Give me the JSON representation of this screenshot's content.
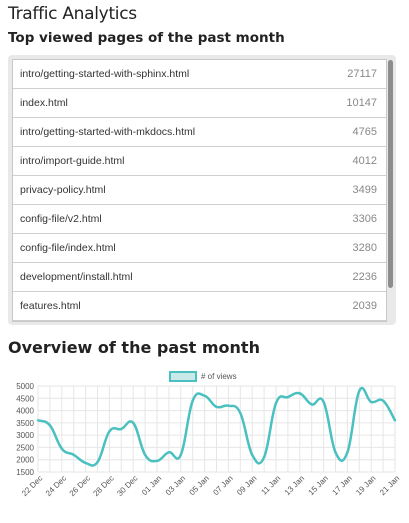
{
  "page": {
    "title": "Traffic Analytics",
    "top_pages_heading": "Top viewed pages of the past month",
    "overview_heading": "Overview of the past month"
  },
  "top_pages": [
    {
      "path": "intro/getting-started-with-sphinx.html",
      "views": "27117"
    },
    {
      "path": "index.html",
      "views": "10147"
    },
    {
      "path": "intro/getting-started-with-mkdocs.html",
      "views": "4765"
    },
    {
      "path": "intro/import-guide.html",
      "views": "4012"
    },
    {
      "path": "privacy-policy.html",
      "views": "3499"
    },
    {
      "path": "config-file/v2.html",
      "views": "3306"
    },
    {
      "path": "config-file/index.html",
      "views": "3280"
    },
    {
      "path": "development/install.html",
      "views": "2236"
    },
    {
      "path": "features.html",
      "views": "2039"
    }
  ],
  "colors": {
    "line": "#4bc0c0",
    "legend_fill": "#c9e9e9",
    "grid": "#e6e6e6"
  },
  "chart_data": {
    "type": "line",
    "x": [
      "22 Dec",
      "23 Dec",
      "24 Dec",
      "25 Dec",
      "26 Dec",
      "27 Dec",
      "28 Dec",
      "29 Dec",
      "30 Dec",
      "31 Dec",
      "01 Jan",
      "02 Jan",
      "03 Jan",
      "04 Jan",
      "05 Jan",
      "06 Jan",
      "07 Jan",
      "08 Jan",
      "09 Jan",
      "10 Jan",
      "11 Jan",
      "12 Jan",
      "13 Jan",
      "14 Jan",
      "15 Jan",
      "16 Jan",
      "17 Jan",
      "18 Jan",
      "19 Jan",
      "20 Jan",
      "21 Jan"
    ],
    "x_tick_labels": [
      "22 Dec",
      "24 Dec",
      "26 Dec",
      "28 Dec",
      "30 Dec",
      "01 Jan",
      "03 Jan",
      "05 Jan",
      "07 Jan",
      "09 Jan",
      "11 Jan",
      "13 Jan",
      "15 Jan",
      "17 Jan",
      "19 Jan",
      "21 Jan"
    ],
    "series": [
      {
        "name": "# of views",
        "values": [
          3600,
          3400,
          2450,
          2200,
          1870,
          1900,
          3150,
          3250,
          3500,
          2200,
          1950,
          2300,
          2200,
          4400,
          4600,
          4150,
          4200,
          3900,
          2200,
          2100,
          4300,
          4550,
          4700,
          4250,
          4350,
          2300,
          2300,
          4800,
          4350,
          4400,
          3600
        ]
      }
    ],
    "ylim": [
      1500,
      5000
    ],
    "y_ticks": [
      1500,
      2000,
      2500,
      3000,
      3500,
      4000,
      4500,
      5000
    ],
    "legend_position": "top",
    "grid": true,
    "xlabel": "",
    "ylabel": ""
  }
}
